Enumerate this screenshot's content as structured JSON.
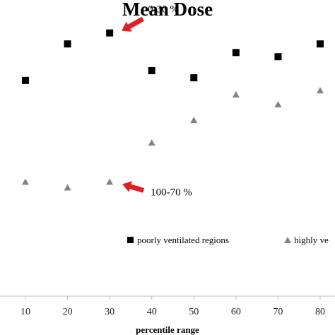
{
  "chart_data": {
    "type": "scatter",
    "title": "Mean Dose",
    "xlabel": "percentile range",
    "ylabel": "",
    "x_ticks": [
      10,
      20,
      30,
      40,
      50,
      60,
      70,
      80
    ],
    "xlim": [
      0,
      83
    ],
    "ylim": [
      0,
      100
    ],
    "grid": false,
    "legend_position": "bottom",
    "series": [
      {
        "name": "poorly ventilated regions",
        "marker": "square",
        "color": "#000000",
        "x": [
          10,
          20,
          30,
          40,
          50,
          60,
          70,
          80
        ],
        "y": [
          72.9,
          85.2,
          88.9,
          76.2,
          73.8,
          82.3,
          80.9,
          85.2
        ]
      },
      {
        "name": "highly ve",
        "marker": "triangle",
        "color": "#7f8685",
        "x": [
          10,
          20,
          30,
          40,
          50,
          60,
          70,
          80
        ],
        "y": [
          38.7,
          36.8,
          38.7,
          51.9,
          59.5,
          68.1,
          64.8,
          69.5
        ]
      }
    ],
    "annotations": [
      {
        "text": "0-30 %",
        "x": 30,
        "y": 88.9,
        "arrow_color": "#e31e24"
      },
      {
        "text": "100-70 %",
        "x": 30,
        "y": 38.7,
        "arrow_color": "#e31e24"
      }
    ]
  }
}
